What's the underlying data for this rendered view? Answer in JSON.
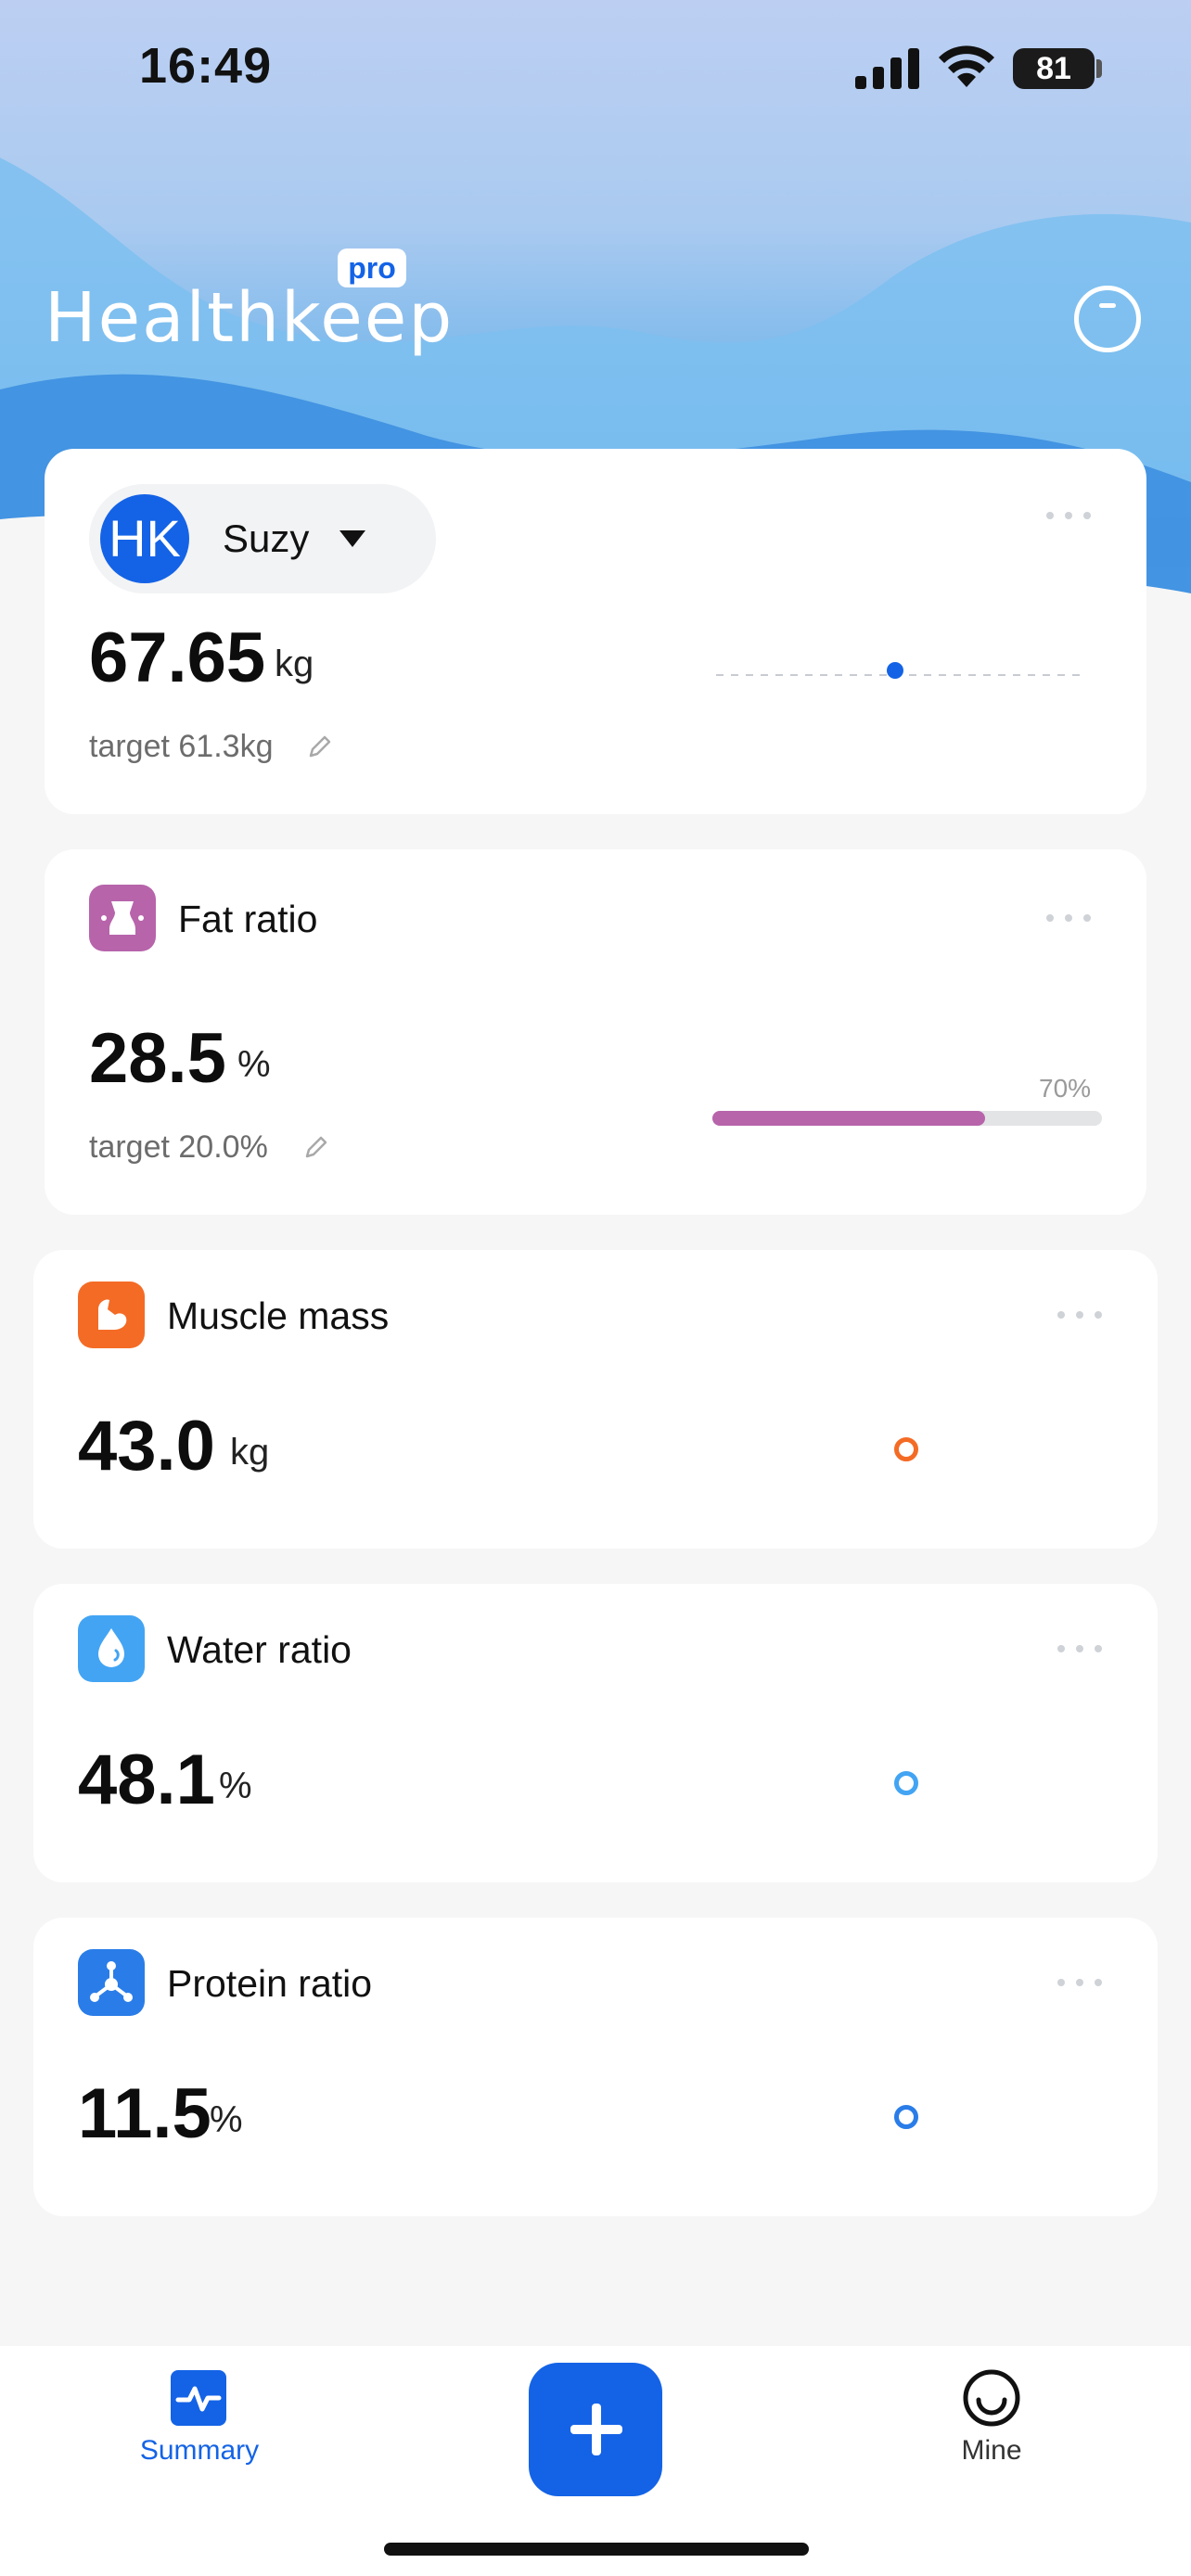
{
  "status_bar": {
    "time": "16:49",
    "battery": "81"
  },
  "header": {
    "logo": "Healthkeep",
    "badge": "pro"
  },
  "weight_card": {
    "user_initials": "HK",
    "user_name": "Suzy",
    "value": "67.65",
    "unit": "kg",
    "target": "target 61.3kg"
  },
  "metrics": [
    {
      "title": "Fat ratio",
      "value": "28.5",
      "unit": "%",
      "target": "target 20.0%",
      "progress": 70,
      "progress_label": "70%",
      "color": "#b764ab"
    },
    {
      "title": "Muscle mass",
      "value": "43.0",
      "unit": "kg",
      "color": "#f46b25"
    },
    {
      "title": "Water ratio",
      "value": "48.1",
      "unit": "%",
      "color": "#43a4f3"
    },
    {
      "title": "Protein ratio",
      "value": "11.5",
      "unit": "%",
      "color": "#2a7de8"
    }
  ],
  "nav": {
    "summary": "Summary",
    "mine": "Mine"
  },
  "colors": {
    "accent": "#1463e6"
  }
}
